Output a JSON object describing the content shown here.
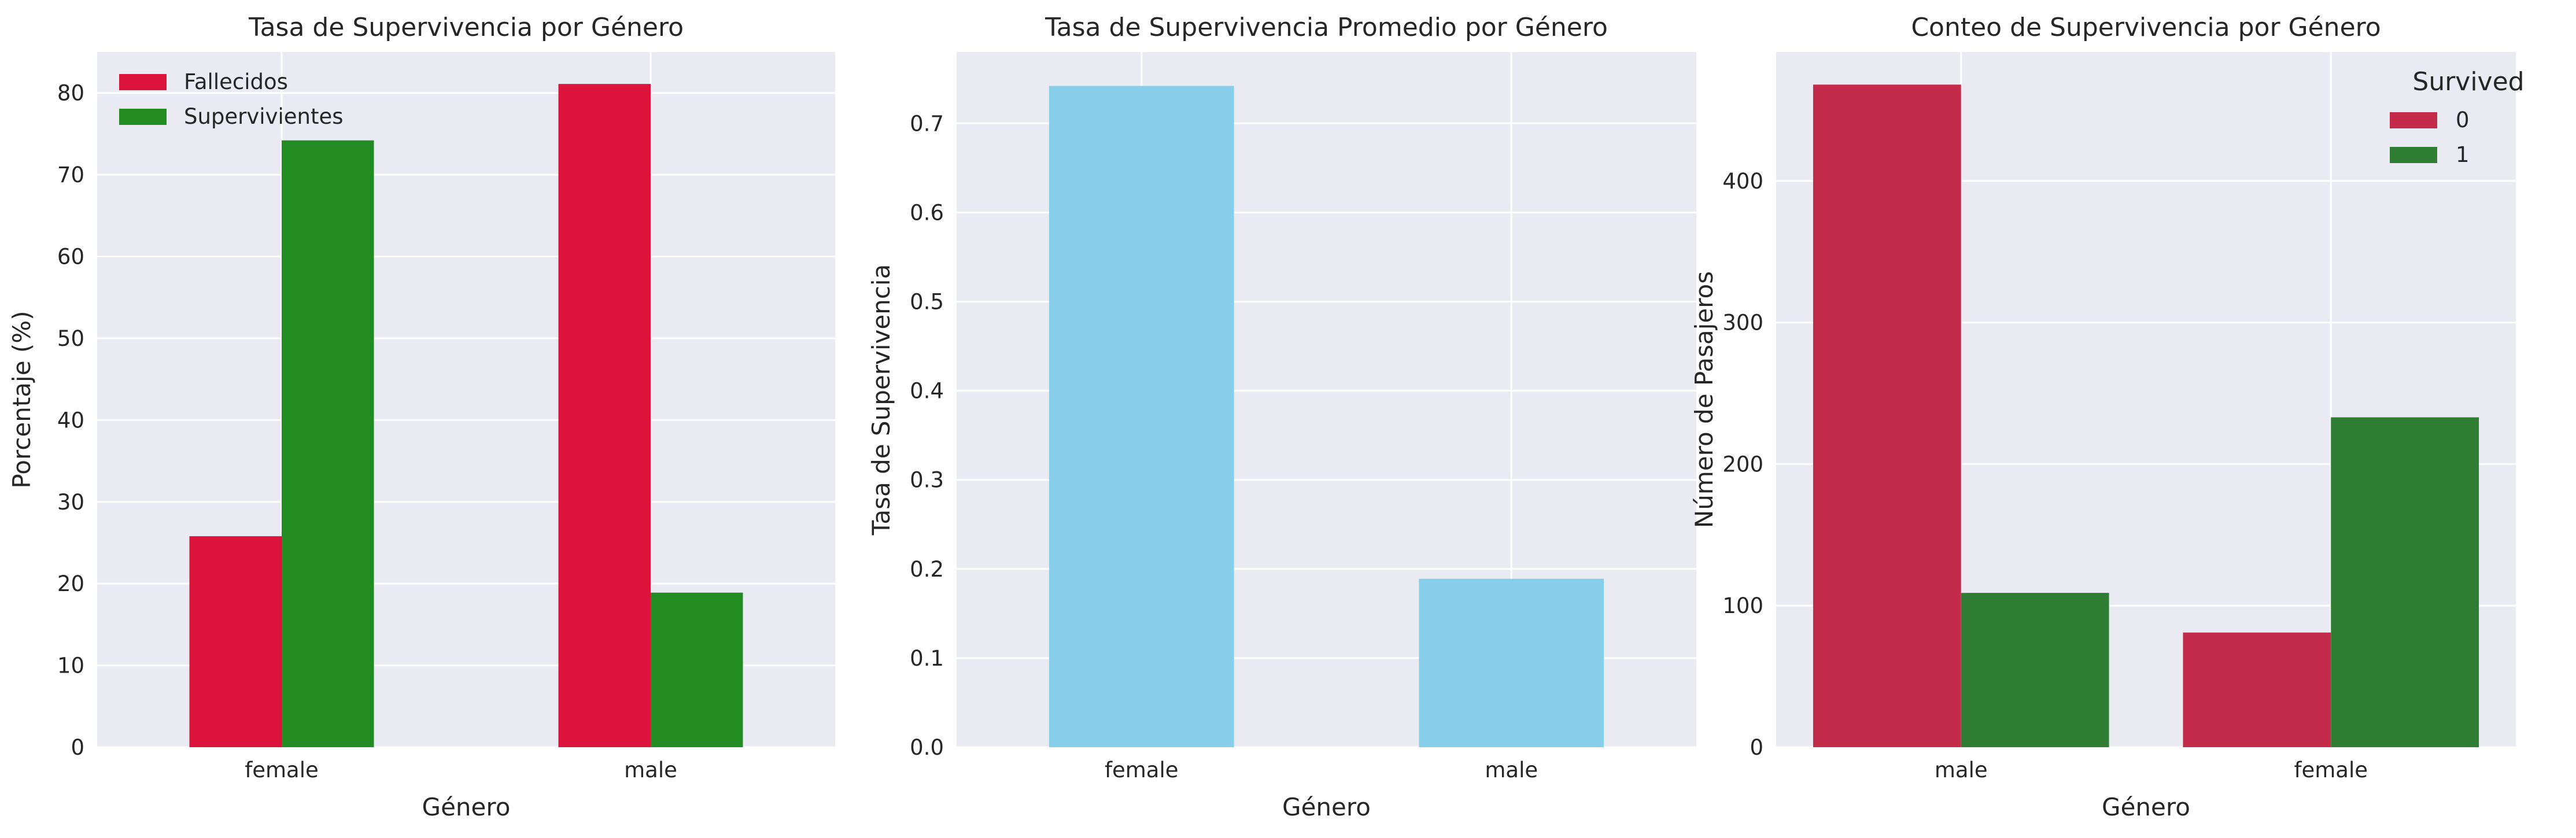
{
  "chart_data": [
    {
      "type": "bar",
      "title": "Tasa de Supervivencia por Género",
      "xlabel": "Género",
      "ylabel": "Porcentaje (%)",
      "categories": [
        "female",
        "male"
      ],
      "series": [
        {
          "name": "Fallecidos",
          "values": [
            25.8,
            81.1
          ],
          "color": "#DC143C"
        },
        {
          "name": "Supervivientes",
          "values": [
            74.2,
            18.9
          ],
          "color": "#228B22"
        }
      ],
      "ylim": [
        0,
        85
      ],
      "yticks": [
        0,
        10,
        20,
        30,
        40,
        50,
        60,
        70,
        80
      ],
      "grid": true,
      "legend_position": "top-left"
    },
    {
      "type": "bar",
      "title": "Tasa de Supervivencia Promedio por Género",
      "xlabel": "Género",
      "ylabel": "Tasa de Supervivencia",
      "categories": [
        "female",
        "male"
      ],
      "series": [
        {
          "values": [
            0.742,
            0.189
          ],
          "color": "#87CEEB"
        }
      ],
      "ylim": [
        0,
        0.78
      ],
      "yticks": [
        "0.0",
        "0.1",
        "0.2",
        "0.3",
        "0.4",
        "0.5",
        "0.6",
        "0.7"
      ],
      "grid": true
    },
    {
      "type": "bar",
      "title": "Conteo de Supervivencia por Género",
      "xlabel": "Género",
      "ylabel": "Número de Pasajeros",
      "categories": [
        "male",
        "female"
      ],
      "legend_title": "Survived",
      "series": [
        {
          "name": "0",
          "values": [
            468,
            81
          ],
          "color": "#C42A4A"
        },
        {
          "name": "1",
          "values": [
            109,
            233
          ],
          "color": "#2E7D32"
        }
      ],
      "ylim": [
        0,
        491
      ],
      "yticks": [
        0,
        100,
        200,
        300,
        400
      ],
      "grid": true,
      "legend_position": "top-right"
    }
  ]
}
